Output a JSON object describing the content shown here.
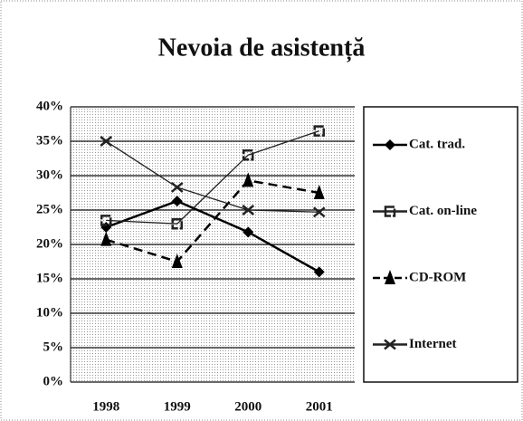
{
  "chart_data": {
    "type": "line",
    "title": "Nevoia de asistență",
    "categories": [
      "1998",
      "1999",
      "2000",
      "2001"
    ],
    "series": [
      {
        "name": "Cat. trad.",
        "color": "#000000",
        "marker": "diamond",
        "dash": "solid",
        "values": [
          22.5,
          26.3,
          21.8,
          16
        ]
      },
      {
        "name": "Cat. on-line",
        "color": "#222222",
        "marker": "square",
        "dash": "solid",
        "values": [
          23.5,
          23,
          33,
          36.5
        ]
      },
      {
        "name": "CD-ROM",
        "color": "#000000",
        "marker": "triangle",
        "dash": "dashed",
        "values": [
          20.7,
          17.5,
          29.3,
          27.5
        ]
      },
      {
        "name": "Internet",
        "color": "#222222",
        "marker": "x",
        "dash": "solid",
        "values": [
          35,
          28.3,
          25,
          24.7
        ]
      }
    ],
    "ylim": [
      0,
      40
    ],
    "yticks": [
      {
        "value": 0,
        "label": "0%"
      },
      {
        "value": 5,
        "label": "5%"
      },
      {
        "value": 10,
        "label": "10%"
      },
      {
        "value": 15,
        "label": "15%"
      },
      {
        "value": 20,
        "label": "20%"
      },
      {
        "value": 25,
        "label": "25%"
      },
      {
        "value": 30,
        "label": "30%"
      },
      {
        "value": 35,
        "label": "35%"
      },
      {
        "value": 40,
        "label": "40%"
      }
    ],
    "grid": true,
    "legend": "right"
  }
}
